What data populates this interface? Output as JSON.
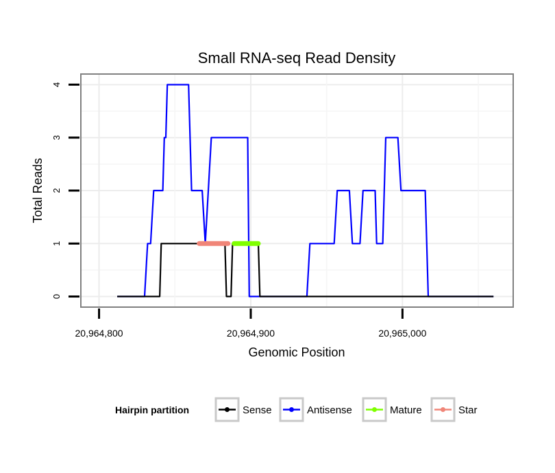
{
  "chart_data": {
    "type": "line",
    "title": "Small RNA-seq Read Density",
    "xlabel": "Genomic Position",
    "ylabel": "Total Reads",
    "xlim": [
      20964788,
      20965073
    ],
    "ylim": [
      -0.2,
      4.2
    ],
    "x_ticks": [
      20964800,
      20964900,
      20965000
    ],
    "x_tick_labels": [
      "20,964,800",
      "20,964,900",
      "20,965,000"
    ],
    "y_ticks": [
      0,
      1,
      2,
      3,
      4
    ],
    "y_tick_labels": [
      "0",
      "1",
      "2",
      "3",
      "4"
    ],
    "grid": true,
    "legend": {
      "title": "Hairpin partition",
      "position": "bottom",
      "entries": [
        "Sense",
        "Antisense",
        "Mature",
        "Star"
      ]
    },
    "series": [
      {
        "name": "Antisense",
        "color": "#0000ff",
        "points": [
          [
            20964812,
            0
          ],
          [
            20964830,
            0
          ],
          [
            20964832,
            1
          ],
          [
            20964834,
            1
          ],
          [
            20964836,
            2
          ],
          [
            20964842,
            2
          ],
          [
            20964843,
            3
          ],
          [
            20964844,
            3
          ],
          [
            20964845,
            4
          ],
          [
            20964859,
            4
          ],
          [
            20964861,
            2
          ],
          [
            20964868,
            2
          ],
          [
            20964870,
            1
          ],
          [
            20964872,
            2
          ],
          [
            20964874,
            3
          ],
          [
            20964898,
            3
          ],
          [
            20964899,
            0
          ],
          [
            20964937,
            0
          ],
          [
            20964939,
            1
          ],
          [
            20964955,
            1
          ],
          [
            20964957,
            2
          ],
          [
            20964965,
            2
          ],
          [
            20964967,
            1
          ],
          [
            20964972,
            1
          ],
          [
            20964974,
            2
          ],
          [
            20964982,
            2
          ],
          [
            20964983,
            1
          ],
          [
            20964987,
            1
          ],
          [
            20964989,
            3
          ],
          [
            20964997,
            3
          ],
          [
            20964999,
            2
          ],
          [
            20965015,
            2
          ],
          [
            20965017,
            0
          ],
          [
            20965060,
            0
          ]
        ]
      },
      {
        "name": "Sense",
        "color": "#000000",
        "points": [
          [
            20964812,
            0
          ],
          [
            20964840,
            0
          ],
          [
            20964841,
            1
          ],
          [
            20964883,
            1
          ],
          [
            20964884,
            0
          ],
          [
            20964887,
            0
          ],
          [
            20964888,
            1
          ],
          [
            20964905,
            1
          ],
          [
            20964906,
            0
          ],
          [
            20965060,
            0
          ]
        ]
      },
      {
        "name": "Star",
        "color": "#f08578",
        "points": [
          [
            20964866,
            1
          ],
          [
            20964885,
            1
          ]
        ]
      },
      {
        "name": "Mature",
        "color": "#7fff00",
        "points": [
          [
            20964889,
            1
          ],
          [
            20964905,
            1
          ]
        ]
      }
    ]
  }
}
